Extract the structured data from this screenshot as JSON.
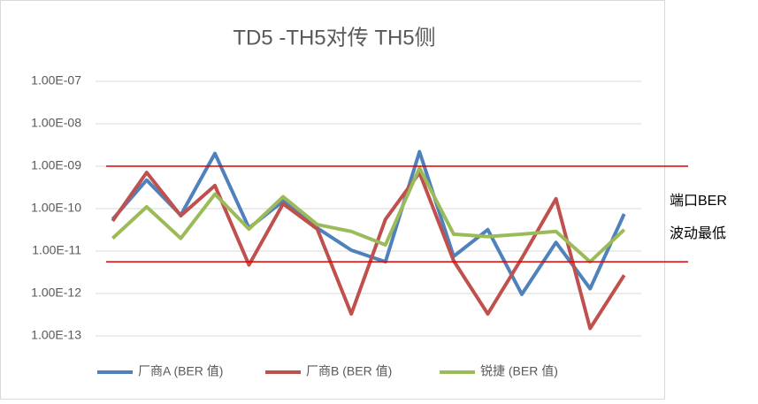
{
  "chart_data": {
    "type": "line",
    "title": "TD5 -TH5对传 TH5侧",
    "categories": [
      null,
      null,
      null,
      null,
      null,
      null,
      null,
      null,
      null,
      null,
      null,
      null,
      null,
      null,
      null,
      null
    ],
    "series": [
      {
        "name": "厂商A (BER 值)",
        "color": "#4f81bd",
        "values": [
          5.6e-11,
          4.7e-10,
          7e-11,
          2e-09,
          3.5e-11,
          1.5e-10,
          3.5e-11,
          1.05e-11,
          5.6e-12,
          2.2e-09,
          7.5e-12,
          3.2e-11,
          9.6e-13,
          1.6e-11,
          1.3e-12,
          7.5e-11
        ]
      },
      {
        "name": "厂商B (BER 值)",
        "color": "#c0504d",
        "values": [
          5.1e-11,
          7.1e-10,
          6.8e-11,
          3.5e-10,
          4.7e-12,
          1.3e-10,
          3.3e-11,
          3.3e-13,
          5.6e-11,
          7e-10,
          5.9e-12,
          3.3e-13,
          6.8e-12,
          1.7e-10,
          1.5e-13,
          2.7e-12
        ]
      },
      {
        "name": "锐捷 (BER 值)",
        "color": "#9bbb59",
        "values": [
          2e-11,
          1.1e-10,
          2e-11,
          2.2e-10,
          3.3e-11,
          1.9e-10,
          4.2e-11,
          2.9e-11,
          1.4e-11,
          9.1e-10,
          2.5e-11,
          2.2e-11,
          2.5e-11,
          2.9e-11,
          5.6e-12,
          3.2e-11
        ]
      }
    ],
    "log_scale": true,
    "ylim": [
      1e-13,
      1e-07
    ],
    "yticks": [
      {
        "value": 1e-07,
        "label": "1.00E-07"
      },
      {
        "value": 1e-08,
        "label": "1.00E-08"
      },
      {
        "value": 1e-09,
        "label": "1.00E-09"
      },
      {
        "value": 1e-10,
        "label": "1.00E-10"
      },
      {
        "value": 1e-11,
        "label": "1.00E-11"
      },
      {
        "value": 1e-12,
        "label": "1.00E-12"
      },
      {
        "value": 1e-13,
        "label": "1.00E-13"
      }
    ],
    "grid": true,
    "legend": "bottom",
    "reference_lines": {
      "color": "#e00000",
      "values": [
        1e-09,
        5.6e-12
      ]
    },
    "annotations": [
      "端口BER",
      "波动最低"
    ]
  }
}
